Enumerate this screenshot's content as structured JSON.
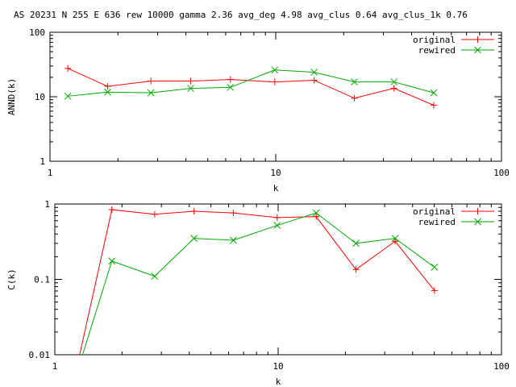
{
  "title": "AS 20231 N 255 E 636 rew 10000 gamma 2.36 avg_deg 4.98 avg_clus 0.64 avg_clus_1k 0.76",
  "chart_data": [
    {
      "type": "line",
      "xlabel": "k",
      "ylabel": "ANND(k)",
      "xscale": "log",
      "yscale": "log",
      "xlim": [
        1,
        100
      ],
      "ylim": [
        1,
        100
      ],
      "xticks": [
        "1",
        "10",
        "100"
      ],
      "yticks": [
        "1",
        "10",
        "100"
      ],
      "legend_position": "top-right",
      "series": [
        {
          "name": "original",
          "color": "#ff0000",
          "marker": "plus",
          "x": [
            1.2,
            1.8,
            2.8,
            4.2,
            6.3,
            9.9,
            14.8,
            22.3,
            33.4,
            50.1
          ],
          "y": [
            27.5,
            14.5,
            17.5,
            17.5,
            18.5,
            17.0,
            18.0,
            9.5,
            13.5,
            7.4
          ]
        },
        {
          "name": "rewired",
          "color": "#00aa00",
          "marker": "x",
          "x": [
            1.2,
            1.8,
            2.8,
            4.2,
            6.3,
            9.9,
            14.8,
            22.3,
            33.4,
            50.1
          ],
          "y": [
            10.2,
            11.8,
            11.5,
            13.5,
            14.0,
            26.0,
            24.0,
            17.0,
            17.0,
            11.5
          ]
        }
      ]
    },
    {
      "type": "line",
      "xlabel": "k",
      "ylabel": "C(k)",
      "xscale": "log",
      "yscale": "log",
      "xlim": [
        1,
        100
      ],
      "ylim": [
        0.01,
        1
      ],
      "xticks": [
        "1",
        "10",
        "100"
      ],
      "yticks": [
        "0.01",
        "0.1",
        "1"
      ],
      "legend_position": "top-right",
      "series": [
        {
          "name": "original",
          "color": "#ff0000",
          "marker": "plus",
          "x": [
            1.2,
            1.8,
            2.8,
            4.2,
            6.3,
            9.9,
            14.8,
            22.3,
            33.4,
            50.1
          ],
          "y": [
            0,
            0.84,
            0.73,
            0.8,
            0.76,
            0.66,
            0.68,
            0.135,
            0.32,
            0.071
          ]
        },
        {
          "name": "rewired",
          "color": "#00aa00",
          "marker": "x",
          "x": [
            1.2,
            1.8,
            2.8,
            4.2,
            6.3,
            9.9,
            14.8,
            22.3,
            33.4,
            50.1
          ],
          "y": [
            0,
            0.175,
            0.11,
            0.35,
            0.33,
            0.52,
            0.76,
            0.3,
            0.35,
            0.145
          ]
        }
      ]
    }
  ]
}
